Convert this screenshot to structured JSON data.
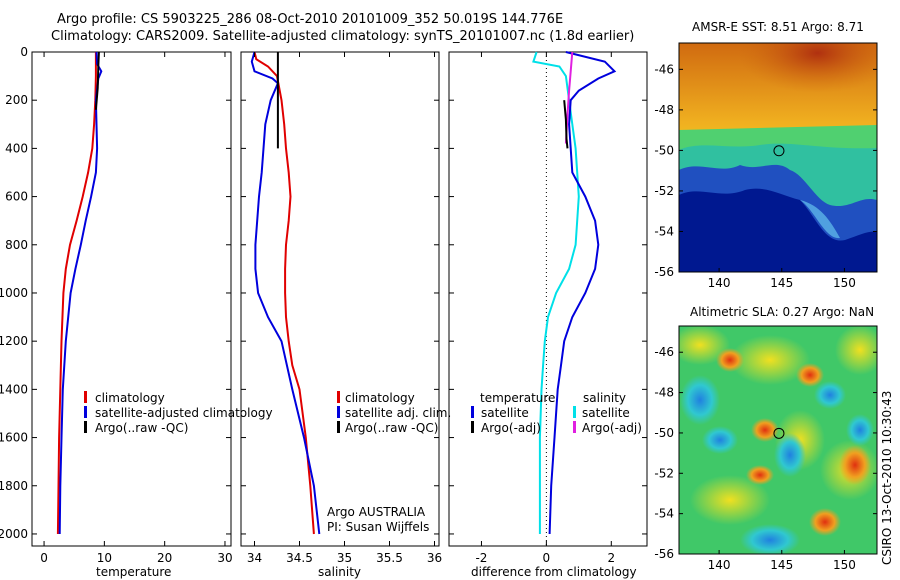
{
  "page_title_line1": "Argo profile: CS 5903225_286 08-Oct-2010 20101009_352 50.019S 144.776E",
  "page_title_line2": "Climatology: CARS2009. Satellite-adjusted climatology: synTS_20101007.nc (1.8d earlier)",
  "colors": {
    "climatology": "#e00000",
    "satellite": "#0000dd",
    "argo": "#000000",
    "temp_diff": "#00e0e8",
    "sal_diff": "#e020e0",
    "sal_argo": "#e020e0"
  },
  "legends": {
    "temperature": [
      "climatology",
      "satellite-adjusted climatology",
      "Argo(..raw -QC)"
    ],
    "salinity": [
      "climatology",
      "satellite adj. clim.",
      "Argo(..raw -QC)"
    ],
    "difference": {
      "temperature_header": "temperature",
      "salinity_header": "salinity",
      "temperature_items": [
        "satellite",
        "Argo(-adj)"
      ],
      "salinity_items": [
        "satellite",
        "Argo(-adj)"
      ]
    }
  },
  "credit": {
    "line1": "Argo AUSTRALIA",
    "line2": "PI: Susan Wijffels"
  },
  "side_stamp": "CSIRO 13-Oct-2010 10:30:43",
  "maps": [
    {
      "title": "AMSR-E SST: 8.51 Argo: 8.71",
      "lon_ticks": [
        "140",
        "145",
        "150"
      ],
      "lat_ticks": [
        "-46",
        "-48",
        "-50",
        "-52",
        "-54",
        "-56"
      ],
      "marker": {
        "lon": 144.776,
        "lat": -50.019
      }
    },
    {
      "title": "Altimetric SLA: 0.27 Argo: NaN",
      "lon_ticks": [
        "140",
        "145",
        "150"
      ],
      "lat_ticks": [
        "-46",
        "-48",
        "-50",
        "-52",
        "-54",
        "-56"
      ],
      "marker": {
        "lon": 144.776,
        "lat": -50.019
      }
    }
  ],
  "chart_data": [
    {
      "type": "line",
      "id": "temperature",
      "xlabel": "temperature",
      "ylabel": "",
      "xlim": [
        -2,
        31
      ],
      "ylim": [
        0,
        2050
      ],
      "y_inverted": true,
      "xticks": [
        0,
        10,
        20,
        30
      ],
      "yticks": [
        0,
        200,
        400,
        600,
        800,
        1000,
        1200,
        1400,
        1600,
        1800,
        2000
      ],
      "series": [
        {
          "name": "climatology",
          "color_key": "climatology",
          "x": [
            8.6,
            8.6,
            8.5,
            8.3,
            8.0,
            7.3,
            6.4,
            5.4,
            4.3,
            3.6,
            3.2,
            2.9,
            2.7,
            2.5,
            2.4,
            2.3
          ],
          "y": [
            0,
            100,
            200,
            300,
            400,
            500,
            600,
            700,
            800,
            900,
            1000,
            1200,
            1400,
            1600,
            1800,
            2000
          ]
        },
        {
          "name": "satellite-adjusted climatology",
          "color_key": "satellite",
          "x": [
            8.7,
            8.8,
            9.5,
            9.0,
            8.6,
            8.8,
            8.6,
            7.8,
            6.9,
            6.1,
            5.2,
            4.4,
            3.6,
            3.1,
            2.9,
            2.8,
            2.7,
            2.6
          ],
          "y": [
            0,
            50,
            80,
            110,
            200,
            400,
            500,
            600,
            700,
            800,
            900,
            1000,
            1200,
            1400,
            1600,
            1700,
            1800,
            2000
          ]
        },
        {
          "name": "Argo(..raw -QC)",
          "color_key": "argo",
          "x": [
            9.1,
            9.0,
            8.9,
            8.6
          ],
          "y": [
            0,
            60,
            150,
            240
          ]
        }
      ]
    },
    {
      "type": "line",
      "id": "salinity",
      "xlabel": "salinity",
      "ylabel": "",
      "xlim": [
        33.85,
        36.05
      ],
      "ylim": [
        0,
        2050
      ],
      "y_inverted": true,
      "xticks": [
        34,
        34.5,
        35,
        35.5,
        36
      ],
      "xticklabels": [
        "34",
        "34.5",
        "35",
        "35.5",
        "36"
      ],
      "series": [
        {
          "name": "climatology",
          "color_key": "climatology",
          "x": [
            34.0,
            34.02,
            34.15,
            34.25,
            34.3,
            34.33,
            34.35,
            34.38,
            34.4,
            34.38,
            34.35,
            34.34,
            34.34,
            34.35,
            34.38,
            34.42,
            34.5,
            34.57,
            34.62,
            34.66
          ],
          "y": [
            0,
            30,
            60,
            100,
            200,
            300,
            400,
            500,
            600,
            700,
            800,
            900,
            1000,
            1100,
            1200,
            1300,
            1400,
            1600,
            1800,
            2000
          ]
        },
        {
          "name": "satellite adj. clim.",
          "color_key": "satellite",
          "x": [
            34.0,
            33.97,
            34.0,
            34.2,
            34.26,
            34.18,
            34.12,
            34.1,
            34.08,
            34.05,
            34.03,
            34.01,
            34.01,
            34.04,
            34.15,
            34.3,
            34.42,
            34.55,
            34.66,
            34.72
          ],
          "y": [
            0,
            40,
            80,
            110,
            130,
            200,
            300,
            400,
            500,
            600,
            700,
            800,
            900,
            1000,
            1100,
            1200,
            1400,
            1600,
            1800,
            2000
          ]
        },
        {
          "name": "Argo(..raw -QC)",
          "color_key": "argo",
          "x": [
            34.26,
            34.26,
            34.26,
            34.26
          ],
          "y": [
            0,
            100,
            250,
            400
          ]
        }
      ]
    },
    {
      "type": "line",
      "id": "difference",
      "xlabel": "difference from climatology",
      "ylabel": "",
      "xlim": [
        -3,
        3.1
      ],
      "ylim": [
        0,
        2050
      ],
      "y_inverted": true,
      "xticks": [
        -2,
        0,
        2
      ],
      "reference_line_x": 0,
      "series": [
        {
          "name": "temperature satellite",
          "color_key": "temp_diff",
          "x": [
            -0.3,
            -0.4,
            0.4,
            0.6,
            0.7,
            0.8,
            0.9,
            0.95,
            1.0,
            0.95,
            0.9,
            0.7,
            0.3,
            0.05,
            -0.05,
            -0.1,
            -0.15,
            -0.2,
            -0.2
          ],
          "y": [
            0,
            40,
            60,
            100,
            200,
            300,
            400,
            500,
            600,
            700,
            800,
            900,
            1000,
            1100,
            1200,
            1300,
            1400,
            1600,
            2000
          ]
        },
        {
          "name": "salinity satellite",
          "color_key": "satellite",
          "x": [
            0.6,
            1.8,
            2.1,
            1.6,
            1.0,
            0.75,
            0.7,
            0.8,
            1.2,
            1.5,
            1.6,
            1.5,
            1.2,
            0.8,
            0.55,
            0.45,
            0.35,
            0.25,
            0.15,
            0.1
          ],
          "y": [
            0,
            40,
            80,
            110,
            160,
            200,
            300,
            500,
            600,
            700,
            800,
            900,
            1000,
            1100,
            1200,
            1300,
            1400,
            1600,
            1800,
            2000
          ]
        },
        {
          "name": "salinity Argo(-adj)",
          "color_key": "sal_argo",
          "x": [
            0.8,
            0.75,
            0.7,
            0.65,
            0.6
          ],
          "y": [
            0,
            80,
            160,
            260,
            380
          ]
        },
        {
          "name": "temperature Argo(-adj)",
          "color_key": "argo",
          "x": [
            0.55,
            0.6,
            0.62,
            0.65
          ],
          "y": [
            200,
            280,
            360,
            400
          ]
        }
      ]
    }
  ]
}
